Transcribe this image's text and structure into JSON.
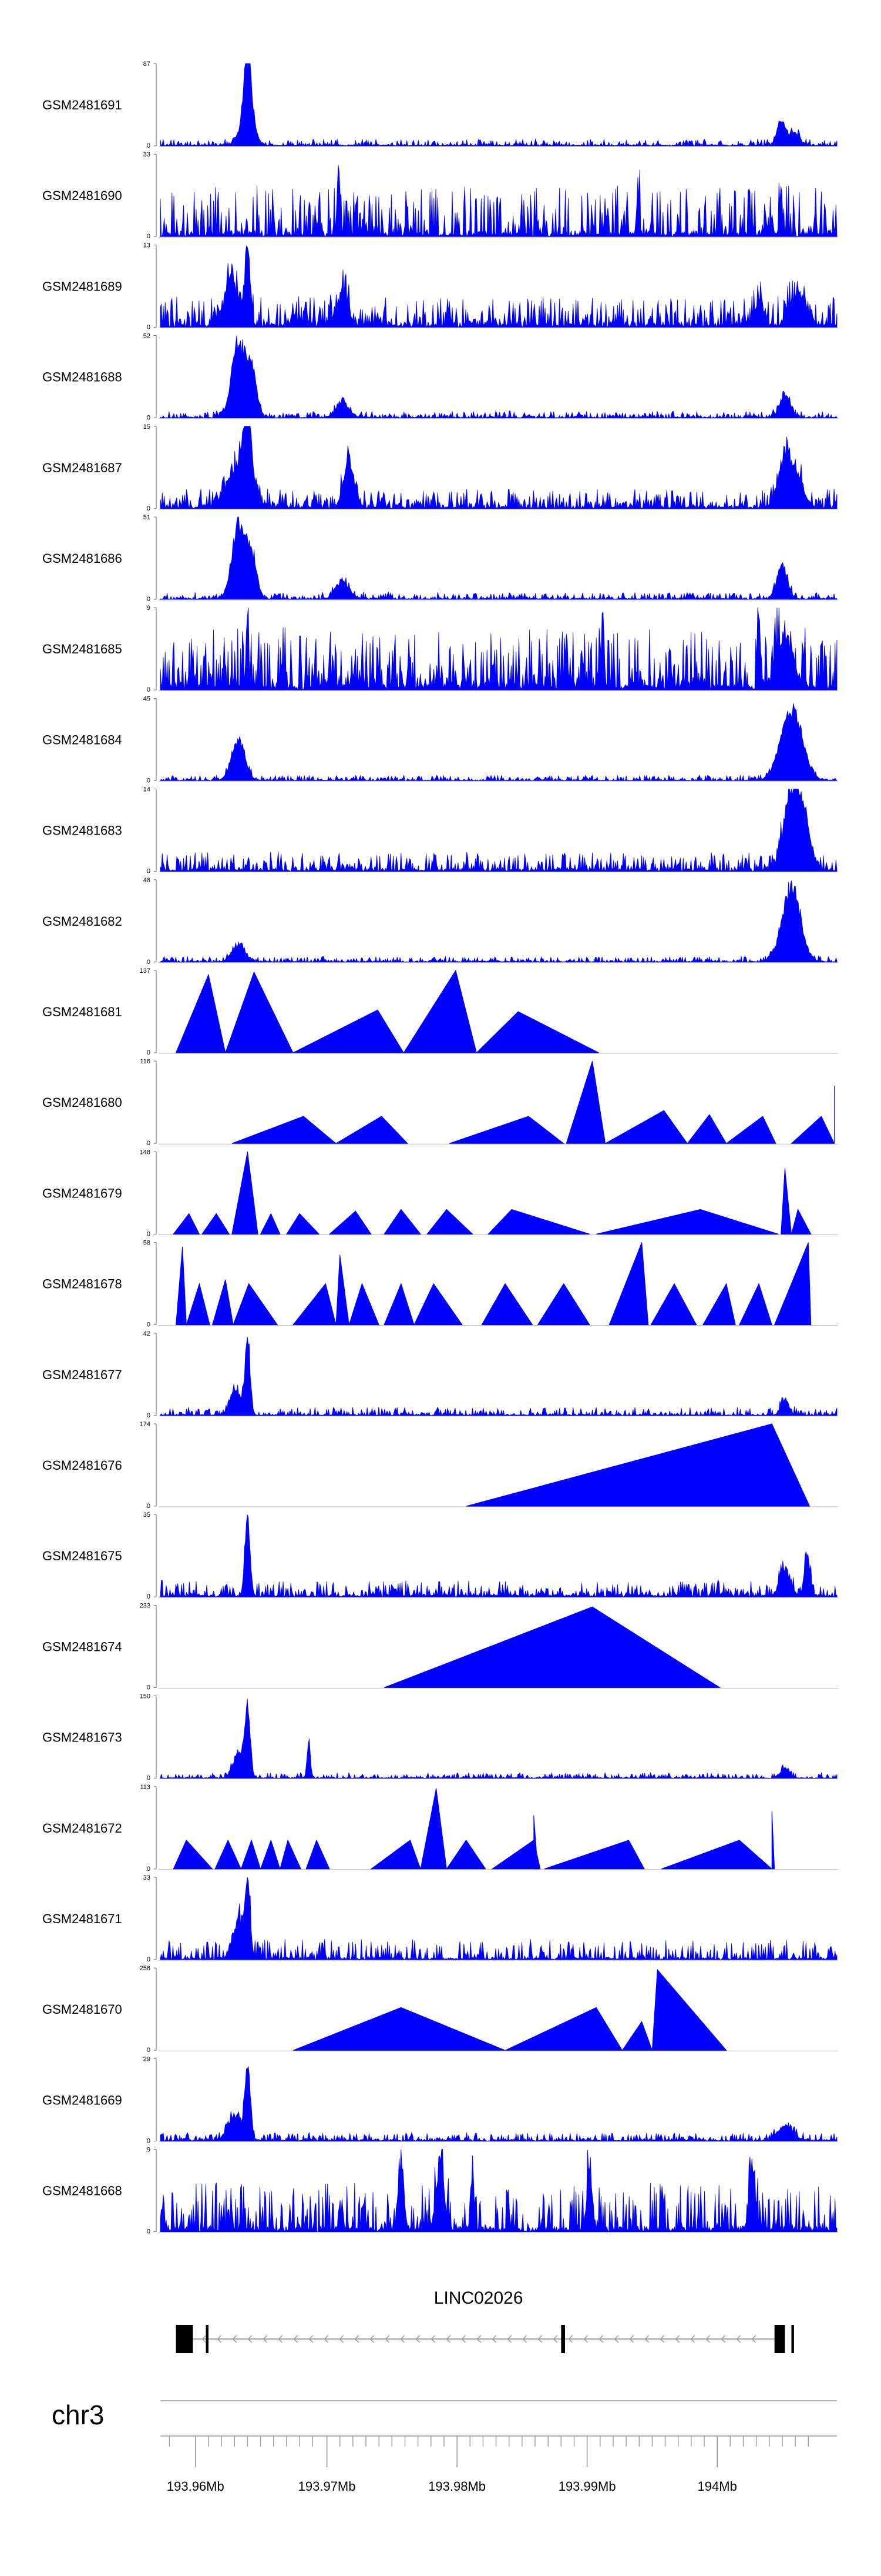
{
  "chart_data": {
    "type": "area",
    "genome_range": [
      193.955,
      194.007
    ],
    "track_color": "#0000ff",
    "tracks": [
      {
        "name": "GSM2481691",
        "ymax": 87,
        "ymin": 0,
        "pattern": "peaks",
        "seed": 11,
        "density": 180,
        "base": 0.05,
        "peaks": [
          [
            193.9617,
            1.0,
            0.00025
          ],
          [
            193.9617,
            0.45,
            0.0005
          ],
          [
            194.0027,
            0.3,
            0.0003
          ],
          [
            194.0037,
            0.18,
            0.0004
          ]
        ]
      },
      {
        "name": "GSM2481690",
        "ymax": 33,
        "ymin": 0,
        "pattern": "spiky",
        "seed": 12,
        "density": 24,
        "base": 0.62,
        "peaks": [
          [
            193.9687,
            1.0,
            0.00012
          ],
          [
            193.9917,
            0.65,
            0.0001
          ],
          [
            194.0027,
            0.65,
            0.0001
          ]
        ]
      },
      {
        "name": "GSM2481689",
        "ymax": 13,
        "ymin": 0,
        "pattern": "peaks",
        "seed": 13,
        "density": 170,
        "base": 0.22,
        "peaks": [
          [
            193.9617,
            1.0,
            0.0002
          ],
          [
            193.9605,
            0.55,
            0.0006
          ],
          [
            193.969,
            0.45,
            0.0004
          ],
          [
            194.001,
            0.35,
            0.0003
          ],
          [
            194.004,
            0.4,
            0.0006
          ]
        ]
      },
      {
        "name": "GSM2481688",
        "ymax": 52,
        "ymin": 0,
        "pattern": "peaks",
        "seed": 14,
        "density": 180,
        "base": 0.05,
        "peaks": [
          [
            193.961,
            1.0,
            0.0005
          ],
          [
            193.962,
            0.6,
            0.0004
          ],
          [
            193.969,
            0.2,
            0.0005
          ],
          [
            194.003,
            0.3,
            0.0004
          ]
        ]
      },
      {
        "name": "GSM2481687",
        "ymax": 15,
        "ymin": 0,
        "pattern": "peaks",
        "seed": 15,
        "density": 170,
        "base": 0.14,
        "peaks": [
          [
            193.9617,
            1.0,
            0.0003
          ],
          [
            193.961,
            0.55,
            0.0009
          ],
          [
            193.9695,
            0.65,
            0.0004
          ],
          [
            194.003,
            0.7,
            0.0005
          ],
          [
            194.004,
            0.35,
            0.0005
          ]
        ]
      },
      {
        "name": "GSM2481686",
        "ymax": 51,
        "ymin": 0,
        "pattern": "peaks",
        "seed": 16,
        "density": 180,
        "base": 0.05,
        "peaks": [
          [
            193.961,
            1.0,
            0.0005
          ],
          [
            193.962,
            0.55,
            0.0004
          ],
          [
            193.969,
            0.25,
            0.0005
          ],
          [
            194.0028,
            0.45,
            0.0004
          ]
        ]
      },
      {
        "name": "GSM2481685",
        "ymax": 9,
        "ymin": 0,
        "pattern": "peaks",
        "seed": 17,
        "density": 170,
        "base": 0.45,
        "peaks": [
          [
            193.9617,
            1.0,
            0.0001
          ],
          [
            193.989,
            1.0,
            0.0001
          ],
          [
            194.001,
            0.9,
            0.0001
          ],
          [
            194.003,
            0.7,
            0.0006
          ]
        ]
      },
      {
        "name": "GSM2481684",
        "ymax": 45,
        "ymin": 0,
        "pattern": "peaks",
        "seed": 18,
        "density": 180,
        "base": 0.04,
        "peaks": [
          [
            193.961,
            0.55,
            0.0005
          ],
          [
            194.0035,
            1.0,
            0.0008
          ]
        ]
      },
      {
        "name": "GSM2481683",
        "ymax": 14,
        "ymin": 0,
        "pattern": "peaks",
        "seed": 19,
        "density": 180,
        "base": 0.14,
        "peaks": [
          [
            194.0035,
            1.0,
            0.0006
          ],
          [
            194.0045,
            0.55,
            0.0005
          ]
        ]
      },
      {
        "name": "GSM2481682",
        "ymax": 48,
        "ymin": 0,
        "pattern": "peaks",
        "seed": 20,
        "density": 180,
        "base": 0.04,
        "peaks": [
          [
            193.961,
            0.22,
            0.0005
          ],
          [
            194.0035,
            1.0,
            0.0007
          ]
        ]
      },
      {
        "name": "GSM2481681",
        "ymax": 137,
        "ymin": 0,
        "pattern": "triangles",
        "seed": 21,
        "triangles": [
          [
            193.9562,
            193.9587,
            193.96,
            0.95
          ],
          [
            193.96,
            193.9622,
            193.9652,
            0.98
          ],
          [
            193.9652,
            193.9717,
            193.9737,
            0.52
          ],
          [
            193.9737,
            193.9777,
            193.9793,
            1.0
          ],
          [
            193.9793,
            193.9825,
            193.9887,
            0.5
          ]
        ]
      },
      {
        "name": "GSM2481680",
        "ymax": 116,
        "ymin": 0,
        "pattern": "triangles",
        "seed": 22,
        "triangles": [
          [
            193.9605,
            193.966,
            193.9685,
            0.33
          ],
          [
            193.9685,
            193.972,
            193.974,
            0.33
          ],
          [
            193.9772,
            193.9833,
            193.986,
            0.33
          ],
          [
            193.9862,
            193.9882,
            193.9892,
            1.0
          ],
          [
            193.9892,
            193.9937,
            193.9955,
            0.4
          ],
          [
            193.9955,
            193.9972,
            193.9985,
            0.35
          ],
          [
            193.9985,
            194.0013,
            194.0023,
            0.33
          ],
          [
            194.0035,
            194.0058,
            194.0068,
            0.33
          ],
          [
            194.0068,
            194.0068,
            194.0068,
            0.7
          ]
        ]
      },
      {
        "name": "GSM2481679",
        "ymax": 148,
        "ymin": 0,
        "pattern": "triangles",
        "seed": 23,
        "triangles": [
          [
            193.956,
            193.9572,
            193.958,
            0.25
          ],
          [
            193.9582,
            193.9593,
            193.9603,
            0.25
          ],
          [
            193.9605,
            193.9617,
            193.9625,
            1.0
          ],
          [
            193.9627,
            193.9635,
            193.9642,
            0.25
          ],
          [
            193.9647,
            193.9657,
            193.9672,
            0.25
          ],
          [
            193.968,
            193.97,
            193.9712,
            0.28
          ],
          [
            193.9722,
            193.9735,
            193.975,
            0.3
          ],
          [
            193.9755,
            193.977,
            193.979,
            0.3
          ],
          [
            193.9802,
            193.982,
            193.988,
            0.3
          ],
          [
            193.9885,
            193.9965,
            194.0025,
            0.3
          ],
          [
            194.0027,
            194.003,
            194.0035,
            0.8
          ],
          [
            194.0035,
            194.004,
            194.005,
            0.3
          ]
        ]
      },
      {
        "name": "GSM2481678",
        "ymax": 58,
        "ymin": 0,
        "pattern": "triangles",
        "seed": 24,
        "triangles": [
          [
            193.9562,
            193.9567,
            193.957,
            0.95
          ],
          [
            193.957,
            193.958,
            193.9588,
            0.5
          ],
          [
            193.959,
            193.96,
            193.9606,
            0.55
          ],
          [
            193.9606,
            193.9618,
            193.964,
            0.5
          ],
          [
            193.9652,
            193.9677,
            193.9685,
            0.5
          ],
          [
            193.9685,
            193.9688,
            193.9695,
            0.85
          ],
          [
            193.9695,
            193.9705,
            193.9718,
            0.5
          ],
          [
            193.9722,
            193.9735,
            193.9745,
            0.5
          ],
          [
            193.9745,
            193.976,
            193.9782,
            0.5
          ],
          [
            193.9797,
            193.9815,
            193.9836,
            0.5
          ],
          [
            193.984,
            193.986,
            193.988,
            0.5
          ],
          [
            193.9895,
            193.992,
            193.9925,
            1.0
          ],
          [
            193.9927,
            193.9945,
            193.9962,
            0.5
          ],
          [
            193.9967,
            193.9985,
            193.9992,
            0.5
          ],
          [
            193.9995,
            194.001,
            194.002,
            0.5
          ],
          [
            194.0022,
            194.0048,
            194.005,
            1.0
          ]
        ]
      },
      {
        "name": "GSM2481677",
        "ymax": 42,
        "ymin": 0,
        "pattern": "peaks",
        "seed": 25,
        "density": 180,
        "base": 0.06,
        "peaks": [
          [
            193.9617,
            1.0,
            0.0002
          ],
          [
            193.9608,
            0.35,
            0.0004
          ],
          [
            194.003,
            0.22,
            0.0003
          ]
        ]
      },
      {
        "name": "GSM2481676",
        "ymax": 174,
        "ymin": 0,
        "pattern": "triangles",
        "seed": 26,
        "triangles": [
          [
            193.9785,
            194.002,
            194.003,
            1.0
          ],
          [
            194.002,
            194.002,
            194.0049,
            1.0
          ]
        ]
      },
      {
        "name": "GSM2481675",
        "ymax": 35,
        "ymin": 0,
        "pattern": "peaks",
        "seed": 27,
        "density": 170,
        "base": 0.12,
        "peaks": [
          [
            193.9617,
            1.0,
            0.0002
          ],
          [
            194.003,
            0.35,
            0.0004
          ],
          [
            194.0047,
            0.6,
            0.0002
          ]
        ]
      },
      {
        "name": "GSM2481674",
        "ymax": 233,
        "ymin": 0,
        "pattern": "triangles",
        "seed": 28,
        "triangles": [
          [
            193.9722,
            193.9882,
            193.998,
            0.98
          ]
        ]
      },
      {
        "name": "GSM2481673",
        "ymax": 150,
        "ymin": 0,
        "pattern": "peaks",
        "seed": 29,
        "density": 170,
        "base": 0.04,
        "peaks": [
          [
            193.9617,
            1.0,
            0.0002
          ],
          [
            193.961,
            0.35,
            0.0004
          ],
          [
            193.9664,
            0.5,
            0.00012
          ],
          [
            194.003,
            0.15,
            0.0003
          ]
        ]
      },
      {
        "name": "GSM2481672",
        "ymax": 113,
        "ymin": 0,
        "pattern": "triangles",
        "seed": 30,
        "triangles": [
          [
            193.956,
            193.957,
            193.959,
            0.35
          ],
          [
            193.9592,
            193.9602,
            193.9612,
            0.35
          ],
          [
            193.9612,
            193.962,
            193.9627,
            0.35
          ],
          [
            193.9627,
            193.9635,
            193.9642,
            0.35
          ],
          [
            193.9642,
            193.9648,
            193.9658,
            0.35
          ],
          [
            193.9662,
            193.967,
            193.968,
            0.35
          ],
          [
            193.9712,
            193.9742,
            193.975,
            0.35
          ],
          [
            193.975,
            193.9762,
            193.977,
            0.98
          ],
          [
            193.977,
            193.9785,
            193.98,
            0.35
          ],
          [
            193.9805,
            193.9837,
            193.9842,
            0.35
          ],
          [
            193.9837,
            193.9837,
            193.984,
            0.65
          ],
          [
            193.9845,
            193.991,
            193.9922,
            0.35
          ],
          [
            193.9935,
            193.9995,
            194.002,
            0.35
          ],
          [
            194.002,
            194.002,
            194.0022,
            0.7
          ]
        ]
      },
      {
        "name": "GSM2481671",
        "ymax": 33,
        "ymin": 0,
        "pattern": "spiky",
        "seed": 31,
        "density": 80,
        "base": 0.25,
        "peaks": [
          [
            193.9617,
            1.0,
            0.0002
          ],
          [
            193.961,
            0.5,
            0.0004
          ]
        ]
      },
      {
        "name": "GSM2481670",
        "ymax": 256,
        "ymin": 0,
        "pattern": "triangles",
        "seed": 32,
        "triangles": [
          [
            193.9652,
            193.9735,
            193.9815,
            0.52
          ],
          [
            193.9815,
            193.9885,
            193.9905,
            0.52
          ],
          [
            193.9905,
            193.992,
            193.9928,
            0.35
          ],
          [
            193.9928,
            193.9932,
            193.9985,
            0.98
          ]
        ]
      },
      {
        "name": "GSM2481669",
        "ymax": 29,
        "ymin": 0,
        "pattern": "peaks",
        "seed": 33,
        "density": 180,
        "base": 0.06,
        "peaks": [
          [
            193.9617,
            1.0,
            0.0002
          ],
          [
            193.9607,
            0.35,
            0.0005
          ],
          [
            194.003,
            0.2,
            0.0006
          ]
        ]
      },
      {
        "name": "GSM2481668",
        "ymax": 9,
        "ymin": 0,
        "pattern": "spiky",
        "seed": 34,
        "density": 120,
        "base": 0.6,
        "peaks": [
          [
            193.9735,
            0.95,
            0.0002
          ],
          [
            193.9765,
            0.9,
            0.0003
          ],
          [
            193.979,
            1.0,
            0.0001
          ],
          [
            193.988,
            0.85,
            0.0002
          ],
          [
            194.0005,
            0.9,
            0.0002
          ]
        ]
      }
    ],
    "gene": {
      "name": "LINC02026",
      "strand": "-",
      "start": 193.9562,
      "end": 194.0027,
      "exons": [
        [
          193.9562,
          193.9575
        ],
        [
          193.9585,
          193.9587
        ],
        [
          193.9858,
          193.9861
        ],
        [
          194.0022,
          194.003
        ],
        [
          194.0035,
          194.0037
        ]
      ]
    },
    "axis": {
      "chromosome": "chr3",
      "tick_labels": [
        "193.96Mb",
        "193.97Mb",
        "193.98Mb",
        "193.99Mb",
        "194Mb"
      ],
      "major_ticks": [
        193.9577,
        193.9678,
        193.9778,
        193.9878,
        193.9978
      ],
      "minor_ticks": [
        193.9557,
        193.9587,
        193.9597,
        193.9607,
        193.9617,
        193.9627,
        193.9637,
        193.9647,
        193.9657,
        193.9667,
        193.9688,
        193.9698,
        193.9708,
        193.9718,
        193.9728,
        193.9738,
        193.9748,
        193.9758,
        193.9768,
        193.9788,
        193.9798,
        193.9808,
        193.9818,
        193.9828,
        193.9838,
        193.9848,
        193.9858,
        193.9868,
        193.9888,
        193.9898,
        193.9908,
        193.9918,
        193.9928,
        193.9938,
        193.9948,
        193.9958,
        193.9968,
        193.9988,
        193.9998,
        194.0008,
        194.0018,
        194.0028,
        194.0038,
        194.0048
      ]
    }
  }
}
